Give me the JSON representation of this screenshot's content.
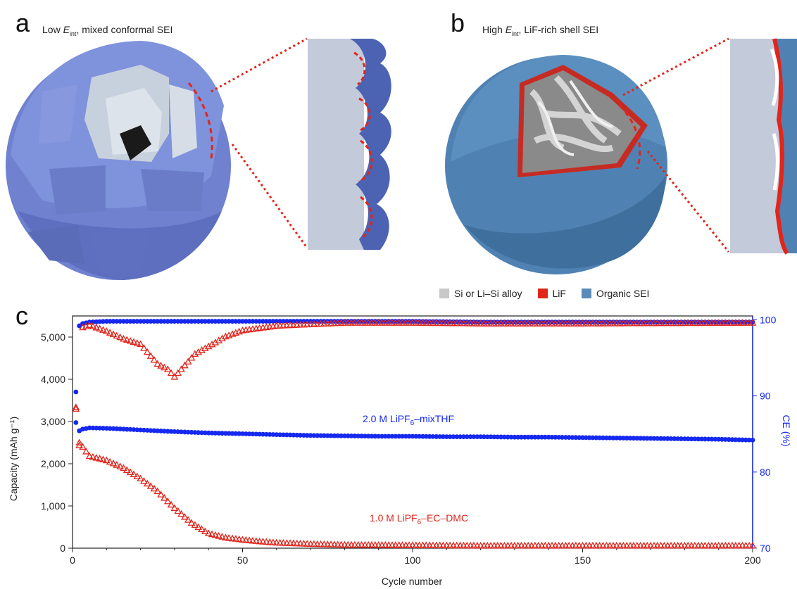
{
  "panel_a": {
    "letter": "a",
    "title_prefix": "Low ",
    "title_symbol": "E",
    "title_sub": "int",
    "title_suffix": ", mixed conformal SEI"
  },
  "panel_b": {
    "letter": "b",
    "title_prefix": "High ",
    "title_symbol": "E",
    "title_sub": "int",
    "title_suffix": ", LiF-rich shell SEI"
  },
  "panel_c": {
    "letter": "c"
  },
  "colors": {
    "si": "#c8c8c8",
    "lif": "#e1251b",
    "organic": "#5b8bb8",
    "sei_a": "#7a8fd6",
    "blue_series": "#1428f0",
    "red_series": "#e1251b"
  },
  "legend": [
    {
      "label": "Si or Li–Si alloy",
      "color": "#c8c8c8"
    },
    {
      "label": "LiF",
      "color": "#e1251b"
    },
    {
      "label": "Organic SEI",
      "color": "#5b8bb8"
    }
  ],
  "chart_data": {
    "type": "scatter",
    "xlabel": "Cycle number",
    "ylabel": "Capacity (mAh g⁻¹)",
    "y2label": "CE (%)",
    "xlim": [
      0,
      200
    ],
    "ylim": [
      0,
      5500
    ],
    "y2lim": [
      70,
      100.5
    ],
    "x_ticks": [
      "0",
      "50",
      "100",
      "150",
      "200"
    ],
    "y_ticks": [
      "0",
      "1,000",
      "2,000",
      "3,000",
      "4,000",
      "5,000"
    ],
    "y2_ticks": [
      "70",
      "80",
      "90",
      "100"
    ],
    "annotations": [
      {
        "text_main": "2.0 M LiPF",
        "text_sub": "6",
        "text_tail": "–mixTHF",
        "color": "#1428f0"
      },
      {
        "text_main": "1.0 M LiPF",
        "text_sub": "6",
        "text_tail": "–EC–DMC",
        "color": "#e1251b"
      }
    ],
    "series": [
      {
        "name": "2.0 M LiPF6–mixTHF capacity",
        "axis": "left",
        "marker": "circle",
        "color": "#1428f0",
        "x": [
          1,
          2,
          3,
          5,
          10,
          20,
          30,
          40,
          50,
          60,
          70,
          80,
          90,
          100,
          110,
          120,
          130,
          140,
          150,
          160,
          170,
          180,
          190,
          200
        ],
        "values": [
          3700,
          2780,
          2820,
          2850,
          2840,
          2800,
          2760,
          2730,
          2710,
          2690,
          2670,
          2660,
          2650,
          2650,
          2640,
          2640,
          2630,
          2630,
          2620,
          2610,
          2600,
          2590,
          2580,
          2560
        ]
      },
      {
        "name": "1.0 M LiPF6–EC–DMC capacity",
        "axis": "left",
        "marker": "triangle",
        "color": "#e1251b",
        "x": [
          1,
          2,
          3,
          5,
          10,
          15,
          20,
          25,
          30,
          35,
          40,
          45,
          50,
          55,
          60,
          70,
          80,
          100,
          120,
          150,
          200
        ],
        "values": [
          3300,
          2500,
          2400,
          2180,
          2080,
          1900,
          1650,
          1350,
          950,
          600,
          350,
          250,
          200,
          160,
          130,
          100,
          80,
          70,
          60,
          60,
          60
        ]
      },
      {
        "name": "2.0 M LiPF6–mixTHF CE",
        "axis": "right",
        "marker": "circle",
        "color": "#1428f0",
        "x": [
          1,
          2,
          3,
          5,
          10,
          20,
          40,
          60,
          80,
          100,
          120,
          140,
          160,
          180,
          200
        ],
        "values": [
          86.5,
          99.2,
          99.5,
          99.7,
          99.8,
          99.8,
          99.8,
          99.8,
          99.8,
          99.8,
          99.7,
          99.7,
          99.7,
          99.7,
          99.7
        ]
      },
      {
        "name": "1.0 M LiPF6–EC–DMC CE",
        "axis": "right",
        "marker": "triangle",
        "color": "#e1251b",
        "x": [
          1,
          2,
          3,
          5,
          10,
          15,
          20,
          25,
          28,
          30,
          33,
          36,
          40,
          45,
          50,
          60,
          70,
          80,
          100,
          120,
          150,
          200
        ],
        "values": [
          88.5,
          83.5,
          99.0,
          99.3,
          98.5,
          97.5,
          96.8,
          94.2,
          93.5,
          92.5,
          94.0,
          95.5,
          96.5,
          97.8,
          98.6,
          99.2,
          99.4,
          99.6,
          99.6,
          99.5,
          99.5,
          99.6
        ]
      }
    ]
  }
}
